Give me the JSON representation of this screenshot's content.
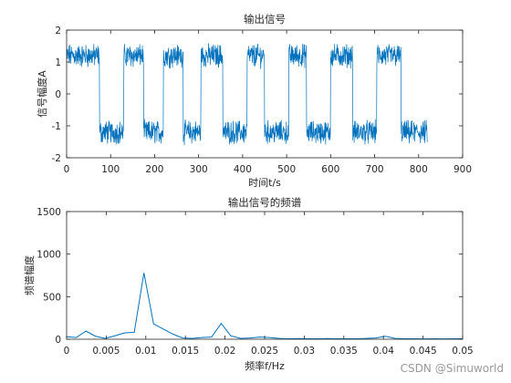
{
  "watermark": "CSDN @Simuworld",
  "chart_data": [
    {
      "type": "line",
      "title": "输出信号",
      "xlabel": "时间t/s",
      "ylabel": "信号幅度A",
      "xlim": [
        0,
        900
      ],
      "ylim": [
        -2,
        2
      ],
      "xticks": [
        "0",
        "100",
        "200",
        "300",
        "400",
        "500",
        "600",
        "700",
        "800",
        "900"
      ],
      "yticks": [
        "-2",
        "-1",
        "0",
        "1",
        "2"
      ],
      "color": "#0072BD",
      "grid": false,
      "signal": {
        "shape": "square-wave",
        "x_end": 820,
        "levels": [
          1.2,
          -1.2
        ],
        "level_changes_at": [
          0,
          75,
          130,
          175,
          220,
          265,
          305,
          355,
          410,
          450,
          505,
          545,
          600,
          650,
          705,
          760,
          820
        ],
        "noise_amplitude": 0.3
      }
    },
    {
      "type": "line",
      "title": "输出信号的频谱",
      "xlabel": "频率f/Hz",
      "ylabel": "频谱幅度",
      "xlim": [
        0,
        0.05
      ],
      "ylim": [
        0,
        1500
      ],
      "xticks": [
        "0",
        "0.005",
        "0.01",
        "0.015",
        "0.02",
        "0.025",
        "0.03",
        "0.035",
        "0.04",
        "0.045",
        "0.05"
      ],
      "yticks": [
        "0",
        "500",
        "1000",
        "1500"
      ],
      "color": "#0072BD",
      "grid": false,
      "x": [
        0,
        0.00122,
        0.00244,
        0.00366,
        0.00488,
        0.0061,
        0.00732,
        0.00854,
        0.00976,
        0.01098,
        0.0122,
        0.01342,
        0.01464,
        0.01586,
        0.01708,
        0.0183,
        0.01952,
        0.02074,
        0.02196,
        0.02318,
        0.0244,
        0.02562,
        0.02684,
        0.02806,
        0.02928,
        0.0305,
        0.03172,
        0.03294,
        0.03416,
        0.03538,
        0.0366,
        0.03782,
        0.03904,
        0.04026,
        0.04148,
        0.0427,
        0.04392,
        0.04514,
        0.04636,
        0.04758,
        0.0488,
        0.05
      ],
      "y": [
        30,
        20,
        95,
        35,
        10,
        40,
        75,
        80,
        780,
        180,
        120,
        60,
        15,
        10,
        20,
        25,
        185,
        40,
        10,
        15,
        25,
        20,
        10,
        5,
        8,
        6,
        5,
        8,
        5,
        6,
        5,
        10,
        15,
        35,
        10,
        6,
        5,
        4,
        5,
        4,
        5,
        5
      ]
    }
  ]
}
